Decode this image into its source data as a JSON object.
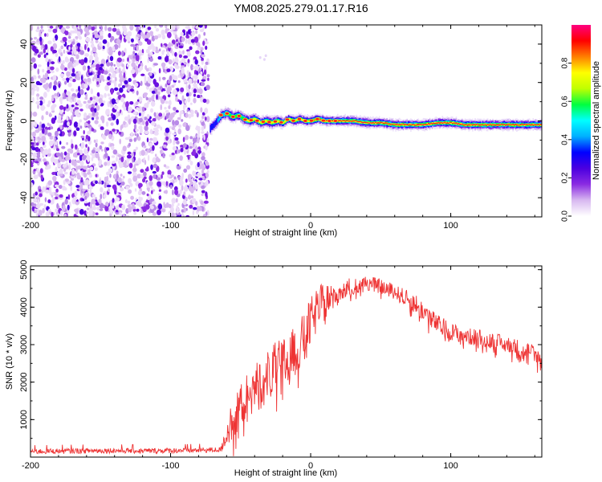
{
  "title": "YM08.2025.279.01.17.R16",
  "chart_data": [
    {
      "type": "heatmap",
      "name": "spectrogram",
      "xlabel": "Height of straight line (km)",
      "ylabel": "Frequency (Hz)",
      "xlim": [
        -200,
        165
      ],
      "ylim": [
        -50,
        50
      ],
      "xticks": [
        -200,
        -100,
        0,
        100
      ],
      "yticks": [
        -40,
        -20,
        0,
        20,
        40
      ],
      "noise_region_x": [
        -200,
        -73
      ],
      "signal_start_x": -73,
      "signal_track": {
        "x": [
          -72,
          -68,
          -64,
          -60,
          -56,
          -52,
          -48,
          -44,
          -40,
          -36,
          -32,
          -28,
          -24,
          -20,
          -16,
          -12,
          -8,
          -4,
          0,
          5,
          10,
          20,
          30,
          40,
          50,
          60,
          70,
          80,
          90,
          100,
          110,
          120,
          130,
          140,
          150,
          160,
          165
        ],
        "y": [
          -4,
          -1,
          3,
          4,
          2,
          3,
          1,
          0,
          1,
          -1,
          0,
          -1,
          0,
          -1,
          1,
          0,
          1,
          0,
          0,
          1,
          0,
          0,
          0,
          -1,
          -1,
          -2,
          -2,
          -2,
          -1,
          -1,
          -2,
          -2,
          -2,
          -2,
          -2,
          -2,
          -2
        ],
        "amplitude": [
          0.45,
          0.5,
          0.6,
          0.7,
          0.75,
          0.8,
          0.8,
          0.85,
          0.85,
          0.85,
          0.88,
          0.88,
          0.88,
          0.9,
          0.92,
          0.92,
          0.93,
          0.93,
          0.95,
          0.95,
          0.95,
          0.95,
          0.95,
          0.95,
          0.95,
          0.95,
          0.95,
          0.95,
          0.95,
          0.95,
          0.95,
          0.95,
          0.95,
          0.95,
          0.95,
          0.95,
          0.95
        ]
      },
      "colorbar": {
        "label": "Normalized spectral amplitude",
        "range": [
          0.0,
          1.0
        ],
        "ticks": [
          0.0,
          0.2,
          0.4,
          0.6,
          0.8
        ],
        "tick_labels": [
          "0.0",
          "0.2",
          "0.4",
          "0.6",
          "0.8"
        ],
        "colors": [
          "#ffffff",
          "#d8b8f0",
          "#8a2be2",
          "#4b00e0",
          "#0000ff",
          "#00b0ff",
          "#00ffff",
          "#00ff40",
          "#c0ff00",
          "#ffff00",
          "#ff8000",
          "#ff0000",
          "#ff0080"
        ]
      }
    },
    {
      "type": "line",
      "name": "snr",
      "xlabel": "Height of straight line (km)",
      "ylabel": "SNR (10 * v/v)",
      "xlim": [
        -200,
        165
      ],
      "ylim": [
        0,
        5100
      ],
      "xticks": [
        -200,
        -100,
        0,
        100
      ],
      "yticks": [
        1000,
        2000,
        3000,
        4000,
        5000
      ],
      "color": "#ee3333",
      "series": [
        {
          "name": "SNR",
          "x": [
            -200,
            -180,
            -160,
            -140,
            -120,
            -100,
            -80,
            -70,
            -64,
            -60,
            -55,
            -50,
            -45,
            -40,
            -35,
            -30,
            -25,
            -20,
            -15,
            -10,
            -5,
            0,
            5,
            10,
            15,
            20,
            25,
            30,
            35,
            40,
            45,
            50,
            55,
            60,
            65,
            70,
            75,
            80,
            85,
            90,
            95,
            100,
            105,
            110,
            115,
            120,
            125,
            130,
            135,
            140,
            145,
            150,
            155,
            160,
            165
          ],
          "values": [
            150,
            160,
            170,
            175,
            165,
            175,
            185,
            190,
            200,
            700,
            1100,
            1400,
            1650,
            1850,
            2000,
            2200,
            2350,
            2500,
            2650,
            2850,
            3200,
            3600,
            3950,
            4150,
            4250,
            4400,
            4500,
            4550,
            4600,
            4650,
            4600,
            4550,
            4500,
            4400,
            4300,
            4200,
            4100,
            3900,
            3750,
            3550,
            3450,
            3350,
            3300,
            3250,
            3200,
            3200,
            3150,
            3100,
            3050,
            3000,
            2950,
            2900,
            2850,
            2750,
            2550
          ],
          "noise_amplitude": [
            120,
            120,
            120,
            120,
            120,
            120,
            120,
            120,
            120,
            700,
            900,
            900,
            900,
            1000,
            1100,
            1100,
            1100,
            1100,
            1100,
            1000,
            1000,
            1000,
            900,
            800,
            600,
            500,
            400,
            350,
            300,
            300,
            300,
            300,
            300,
            300,
            350,
            350,
            400,
            400,
            400,
            400,
            400,
            350,
            350,
            350,
            350,
            350,
            350,
            350,
            350,
            350,
            350,
            350,
            350,
            350,
            350
          ]
        }
      ]
    }
  ]
}
